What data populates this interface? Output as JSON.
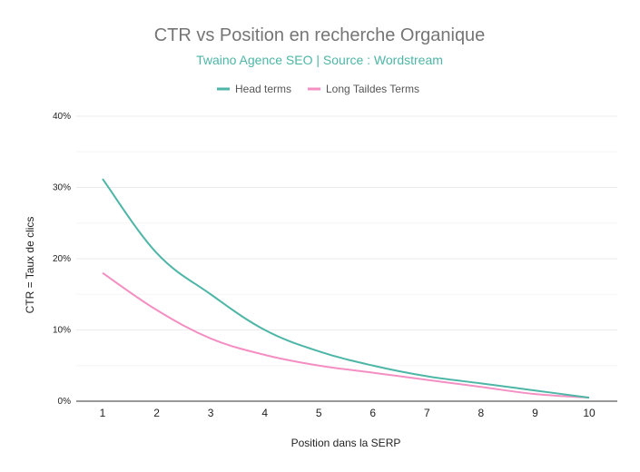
{
  "chart_data": {
    "type": "line",
    "title": "CTR vs Position en recherche Organique",
    "subtitle": "Twaino Agence SEO | Source : Wordstream",
    "xlabel": "Position dans la SERP",
    "ylabel": "CTR = Taux de clics",
    "x": [
      1,
      2,
      3,
      4,
      5,
      6,
      7,
      8,
      9,
      10
    ],
    "ylim": [
      0,
      40
    ],
    "yticks": [
      0,
      10,
      20,
      30,
      40
    ],
    "ytick_labels": [
      "0%",
      "10%",
      "20%",
      "30%",
      "40%"
    ],
    "grid": true,
    "legend_position": "top",
    "series": [
      {
        "name": "Head terms",
        "color": "#4db6a6",
        "values": [
          31.2,
          20.8,
          15.0,
          10.0,
          7.0,
          5.0,
          3.5,
          2.5,
          1.5,
          0.5
        ]
      },
      {
        "name": "Long Taildes Terms",
        "color": "#f48fc3",
        "values": [
          18.0,
          12.8,
          8.8,
          6.5,
          5.0,
          4.0,
          3.0,
          2.0,
          1.0,
          0.5
        ]
      }
    ]
  }
}
